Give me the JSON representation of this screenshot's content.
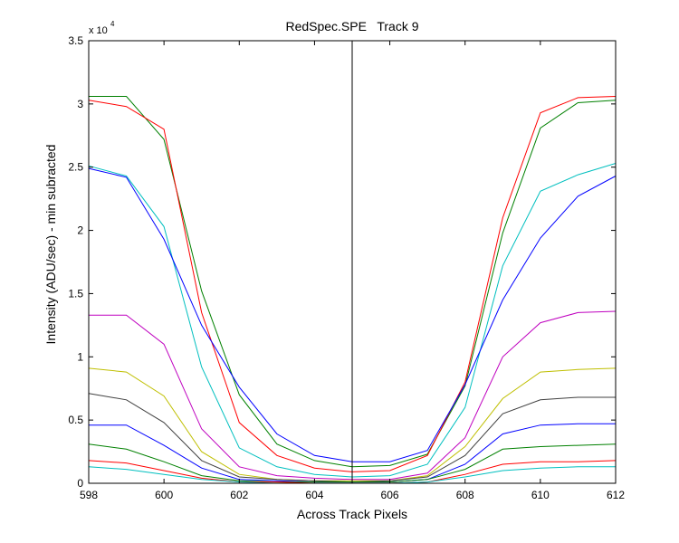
{
  "chart_data": {
    "type": "line",
    "title": "RedSpec.SPE   Track 9",
    "xlabel": "Across Track Pixels",
    "ylabel": "Intensity (ADU/sec) - min subracted",
    "exponent_label": "x 10",
    "exponent_power": "4",
    "xlim": [
      598,
      612
    ],
    "ylim": [
      0,
      35000
    ],
    "xticks": [
      598,
      600,
      602,
      604,
      606,
      608,
      610,
      612
    ],
    "yticks": [
      0,
      5000,
      10000,
      15000,
      20000,
      25000,
      30000,
      35000
    ],
    "ytick_labels": [
      "0",
      "0.5",
      "1",
      "1.5",
      "2",
      "2.5",
      "3",
      "3.5"
    ],
    "vertical_line_x": 605,
    "grid": false,
    "x": [
      598,
      599,
      600,
      601,
      602,
      603,
      604,
      605,
      606,
      607,
      608,
      609,
      610,
      611,
      612
    ],
    "series": [
      {
        "color": "#008000",
        "values": [
          30600,
          30600,
          27200,
          15200,
          7000,
          3100,
          1800,
          1300,
          1400,
          2300,
          7700,
          19800,
          28100,
          30100,
          30300
        ]
      },
      {
        "color": "#ff0000",
        "values": [
          30300,
          29800,
          28000,
          13500,
          4800,
          2200,
          1200,
          900,
          1000,
          2200,
          8000,
          21000,
          29300,
          30500,
          30600
        ]
      },
      {
        "color": "#00bfbf",
        "values": [
          25100,
          24300,
          20300,
          9200,
          2800,
          1300,
          700,
          500,
          600,
          1500,
          6000,
          17200,
          23100,
          24400,
          25300
        ]
      },
      {
        "color": "#0000ff",
        "values": [
          24900,
          24200,
          19300,
          12500,
          7600,
          3900,
          2200,
          1700,
          1700,
          2600,
          7800,
          14500,
          19400,
          22700,
          24300
        ]
      },
      {
        "color": "#bf00bf",
        "values": [
          13300,
          13300,
          11000,
          4300,
          1300,
          600,
          400,
          300,
          300,
          800,
          3600,
          10000,
          12700,
          13500,
          13600
        ]
      },
      {
        "color": "#bfbf00",
        "values": [
          9100,
          8800,
          6900,
          2500,
          700,
          300,
          200,
          200,
          200,
          600,
          2900,
          6700,
          8800,
          9000,
          9100
        ]
      },
      {
        "color": "#404040",
        "values": [
          7100,
          6600,
          4800,
          1800,
          500,
          300,
          200,
          100,
          200,
          500,
          2200,
          5500,
          6600,
          6800,
          6800
        ]
      },
      {
        "color": "#0000ff",
        "values": [
          4600,
          4600,
          3000,
          1200,
          300,
          200,
          100,
          100,
          100,
          300,
          1500,
          3900,
          4600,
          4700,
          4700
        ]
      },
      {
        "color": "#008000",
        "values": [
          3100,
          2700,
          1700,
          600,
          200,
          100,
          100,
          100,
          100,
          300,
          1100,
          2700,
          2900,
          3000,
          3100
        ]
      },
      {
        "color": "#ff0000",
        "values": [
          1800,
          1600,
          1000,
          400,
          100,
          100,
          0,
          0,
          0,
          100,
          700,
          1500,
          1700,
          1700,
          1800
        ]
      },
      {
        "color": "#00bfbf",
        "values": [
          1300,
          1100,
          700,
          300,
          100,
          0,
          0,
          0,
          0,
          100,
          500,
          1000,
          1200,
          1300,
          1300
        ]
      }
    ]
  }
}
